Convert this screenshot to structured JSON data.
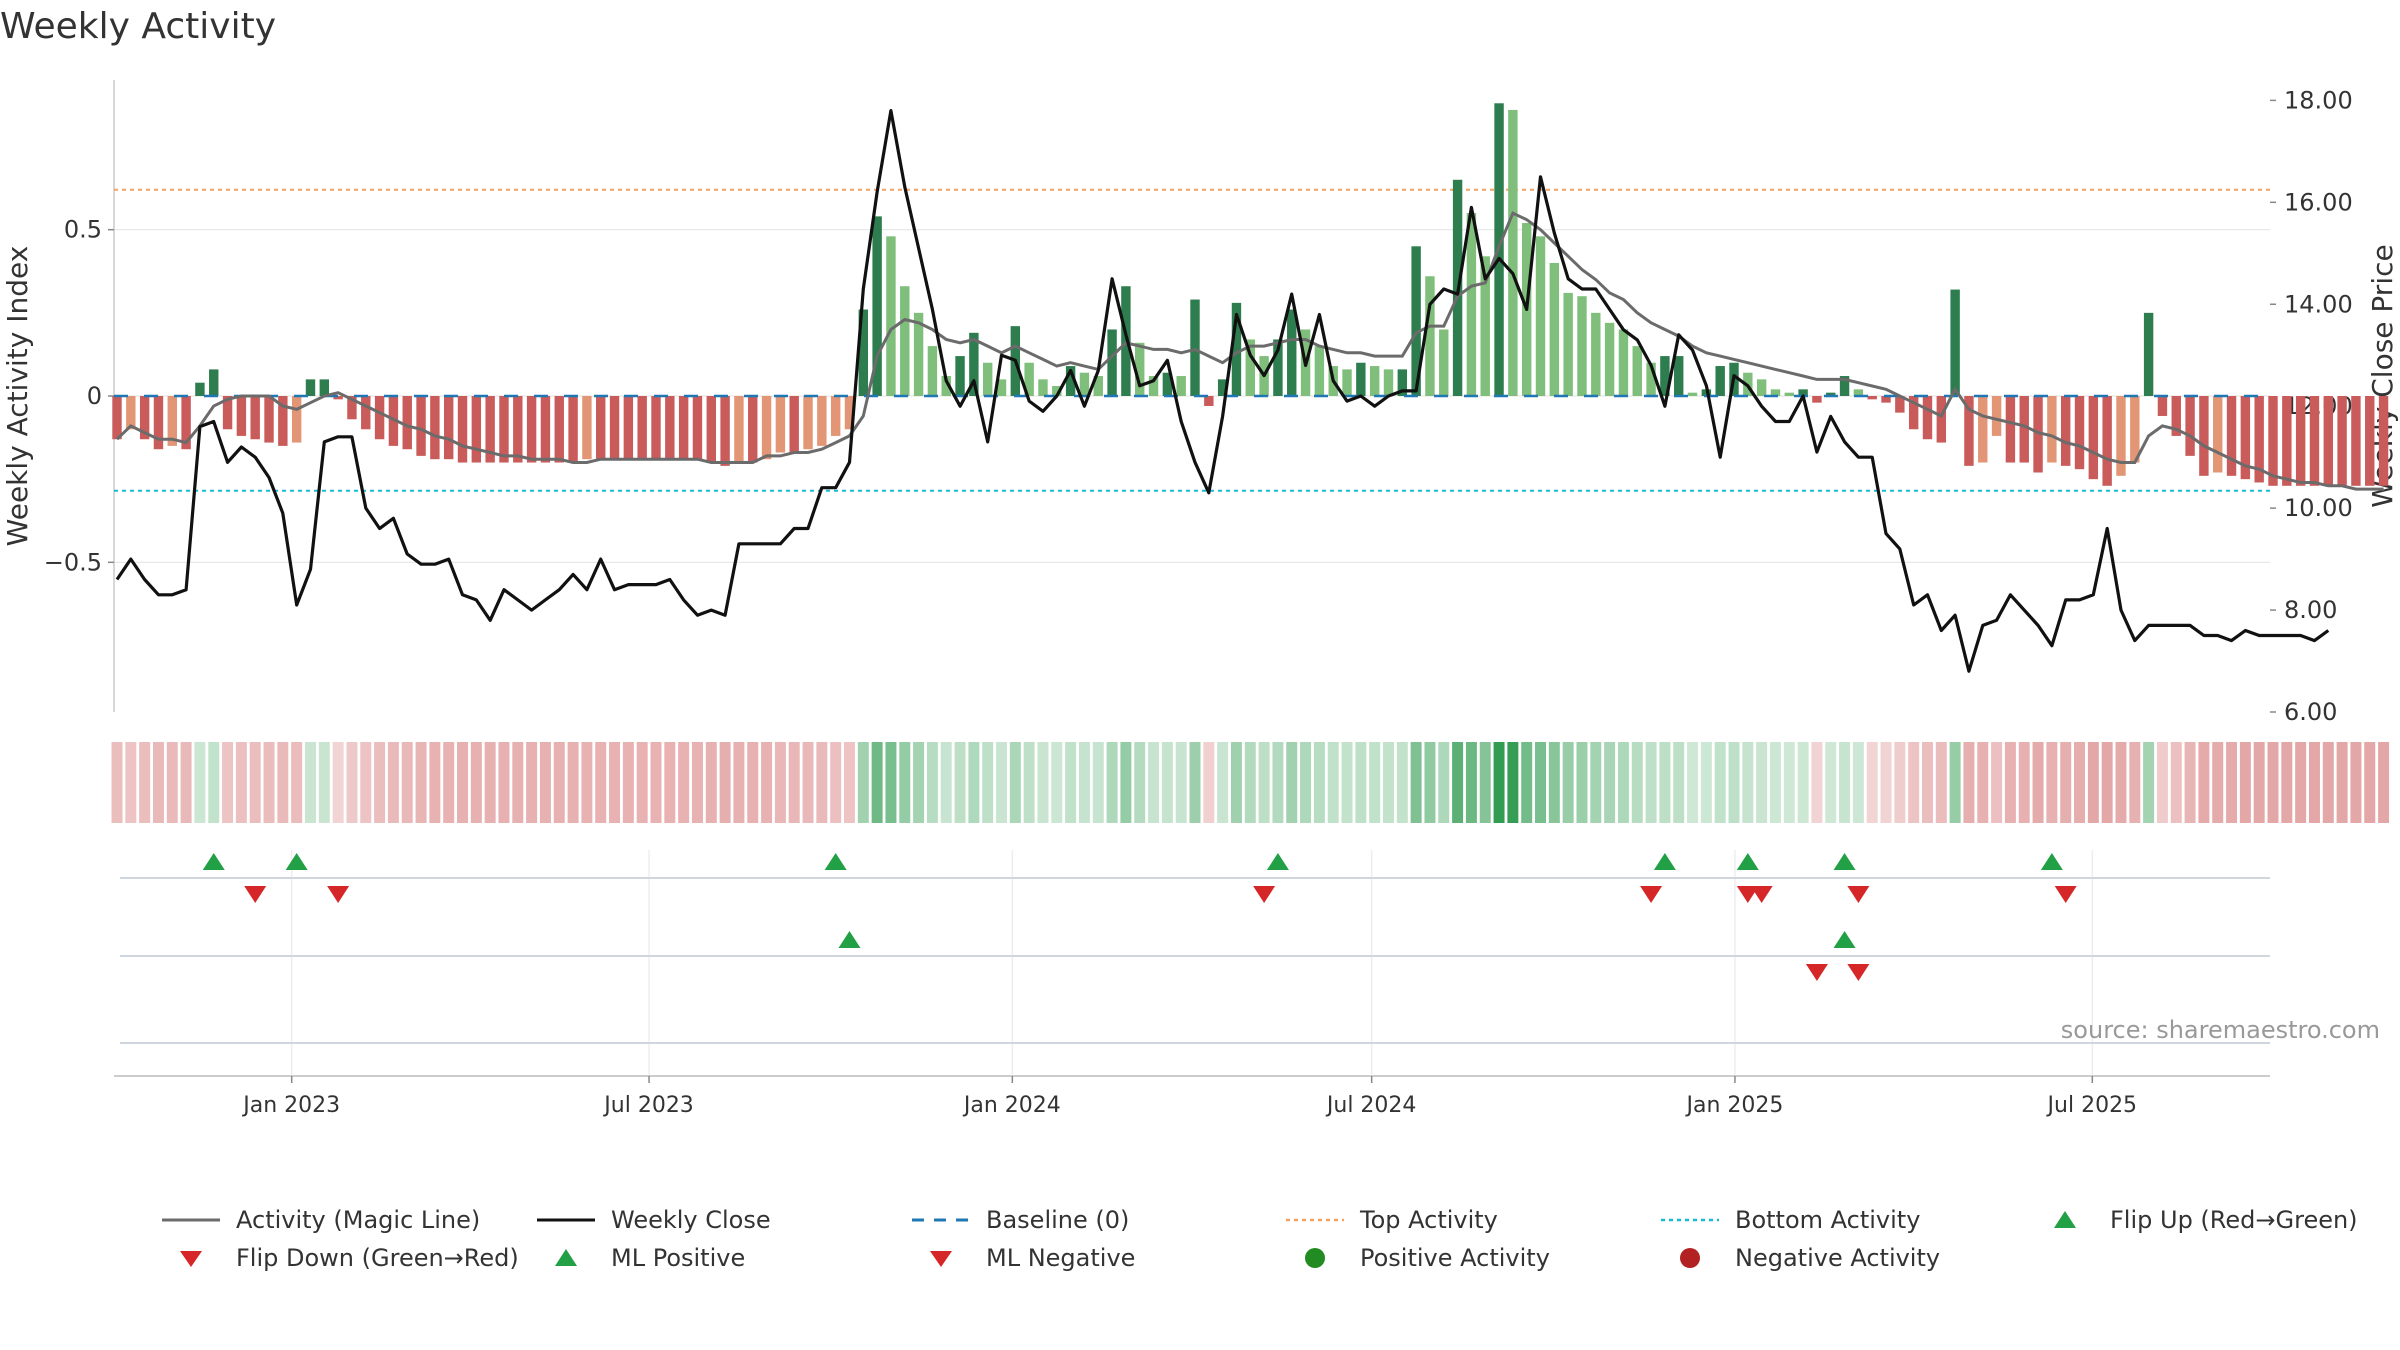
{
  "title": "Weekly Activity",
  "source": "source: sharemaestro.com",
  "colors": {
    "magic_line": "#6b6b6b",
    "close": "#111111",
    "baseline": "#1f77b4",
    "top": "#f4a261",
    "bottom": "#17becf",
    "pos_dark": "#2e7d4f",
    "pos_light": "#7fbf7b",
    "neg_dark": "#c95b5b",
    "neg_light": "#e39676",
    "marker_up": "#22a045",
    "marker_down": "#d62728",
    "positive_dot": "#228b22",
    "negative_dot": "#b22222"
  },
  "legend": [
    {
      "label": "Activity (Magic Line)",
      "icon": "solid-gray-line"
    },
    {
      "label": "Weekly Close",
      "icon": "solid-black-line"
    },
    {
      "label": "Baseline (0)",
      "icon": "dashed-blue-line"
    },
    {
      "label": "Top Activity",
      "icon": "dotted-orange-line"
    },
    {
      "label": "Bottom Activity",
      "icon": "dotted-cyan-line"
    },
    {
      "label": "Flip Up (Red→Green)",
      "icon": "green-up-triangle"
    },
    {
      "label": "Flip Down (Green→Red)",
      "icon": "red-down-triangle"
    },
    {
      "label": "ML Positive",
      "icon": "green-up-triangle"
    },
    {
      "label": "ML Negative",
      "icon": "red-down-triangle"
    },
    {
      "label": "Positive Activity",
      "icon": "green-dot"
    },
    {
      "label": "Negative Activity",
      "icon": "red-dot"
    }
  ],
  "chart_data": {
    "type": "bar",
    "ylabel_left": "Weekly Activity Index",
    "ylabel_right": "Weekly Close Price",
    "y_left_ticks": [
      0.5,
      0,
      -0.5
    ],
    "y_left_tick_labels": [
      "0.5",
      "0",
      "−0.5"
    ],
    "y_left_range": [
      -0.95,
      0.95
    ],
    "y_right_ticks": [
      18,
      16,
      14,
      12,
      10,
      8,
      6
    ],
    "y_right_tick_labels": [
      "18.00",
      "16.00",
      "14.00",
      "12.00",
      "10.00",
      "8.00",
      "6.00"
    ],
    "y_right_range": [
      6,
      18.4
    ],
    "x_range": [
      "2022-10-03",
      "2025-09-29"
    ],
    "x_ticks": [
      {
        "date": "2023-01-01",
        "label": "Jan 2023"
      },
      {
        "date": "2023-07-01",
        "label": "Jul 2023"
      },
      {
        "date": "2024-01-01",
        "label": "Jan 2024"
      },
      {
        "date": "2024-07-01",
        "label": "Jul 2024"
      },
      {
        "date": "2025-01-01",
        "label": "Jan 2025"
      },
      {
        "date": "2025-07-01",
        "label": "Jul 2025"
      }
    ],
    "first_week": "2022-10-03",
    "top_activity": 0.62,
    "bottom_activity": -0.285,
    "baseline": 0,
    "grid": true,
    "activity": [
      -0.13,
      -0.1,
      -0.13,
      -0.16,
      -0.15,
      -0.16,
      0.04,
      0.08,
      -0.1,
      -0.12,
      -0.13,
      -0.14,
      -0.15,
      -0.14,
      0.05,
      0.05,
      -0.01,
      -0.07,
      -0.1,
      -0.13,
      -0.15,
      -0.16,
      -0.18,
      -0.19,
      -0.19,
      -0.2,
      -0.2,
      -0.2,
      -0.2,
      -0.2,
      -0.2,
      -0.2,
      -0.2,
      -0.2,
      -0.19,
      -0.19,
      -0.19,
      -0.19,
      -0.19,
      -0.19,
      -0.19,
      -0.19,
      -0.19,
      -0.2,
      -0.21,
      -0.2,
      -0.2,
      -0.19,
      -0.17,
      -0.17,
      -0.16,
      -0.15,
      -0.12,
      -0.1,
      0.26,
      0.54,
      0.48,
      0.33,
      0.25,
      0.15,
      0.06,
      0.12,
      0.19,
      0.1,
      0.05,
      0.21,
      0.1,
      0.05,
      0.03,
      0.09,
      0.07,
      0.06,
      0.2,
      0.33,
      0.16,
      0.06,
      0.07,
      0.06,
      0.29,
      -0.03,
      0.05,
      0.28,
      0.17,
      0.12,
      0.17,
      0.26,
      0.2,
      0.15,
      0.09,
      0.08,
      0.1,
      0.09,
      0.08,
      0.08,
      0.45,
      0.36,
      0.2,
      0.65,
      0.55,
      0.42,
      0.88,
      0.86,
      0.52,
      0.48,
      0.4,
      0.31,
      0.3,
      0.25,
      0.22,
      0.2,
      0.15,
      0.1,
      0.12,
      0.12,
      0.01,
      0.02,
      0.09,
      0.1,
      0.07,
      0.05,
      0.02,
      0.01,
      0.02,
      -0.02,
      0.01,
      0.06,
      0.02,
      -0.01,
      -0.02,
      -0.05,
      -0.1,
      -0.13,
      -0.14,
      0.32,
      -0.21,
      -0.2,
      -0.12,
      -0.2,
      -0.2,
      -0.23,
      -0.2,
      -0.21,
      -0.22,
      -0.25,
      -0.27,
      -0.24,
      -0.2,
      0.25,
      -0.06,
      -0.12,
      -0.18,
      -0.24,
      -0.23,
      -0.24,
      -0.25,
      -0.26,
      -0.27,
      -0.27,
      -0.27,
      -0.27,
      -0.27,
      -0.27,
      -0.27,
      -0.27,
      -0.27
    ],
    "magic_line": [
      -0.13,
      -0.09,
      -0.11,
      -0.13,
      -0.13,
      -0.14,
      -0.09,
      -0.03,
      -0.01,
      0.0,
      0.0,
      0.0,
      -0.03,
      -0.04,
      -0.02,
      0.0,
      0.01,
      -0.01,
      -0.03,
      -0.05,
      -0.07,
      -0.09,
      -0.1,
      -0.12,
      -0.13,
      -0.15,
      -0.16,
      -0.17,
      -0.18,
      -0.18,
      -0.19,
      -0.19,
      -0.19,
      -0.2,
      -0.2,
      -0.19,
      -0.19,
      -0.19,
      -0.19,
      -0.19,
      -0.19,
      -0.19,
      -0.19,
      -0.2,
      -0.2,
      -0.2,
      -0.2,
      -0.18,
      -0.18,
      -0.17,
      -0.17,
      -0.16,
      -0.14,
      -0.12,
      -0.06,
      0.12,
      0.2,
      0.23,
      0.22,
      0.2,
      0.17,
      0.16,
      0.17,
      0.15,
      0.13,
      0.15,
      0.13,
      0.11,
      0.09,
      0.1,
      0.09,
      0.08,
      0.12,
      0.16,
      0.15,
      0.14,
      0.14,
      0.13,
      0.14,
      0.12,
      0.1,
      0.13,
      0.15,
      0.15,
      0.16,
      0.17,
      0.17,
      0.15,
      0.14,
      0.13,
      0.13,
      0.12,
      0.12,
      0.12,
      0.19,
      0.21,
      0.21,
      0.3,
      0.33,
      0.34,
      0.45,
      0.55,
      0.53,
      0.5,
      0.46,
      0.42,
      0.38,
      0.35,
      0.31,
      0.29,
      0.25,
      0.22,
      0.2,
      0.18,
      0.15,
      0.13,
      0.12,
      0.11,
      0.1,
      0.09,
      0.08,
      0.07,
      0.06,
      0.05,
      0.05,
      0.05,
      0.04,
      0.03,
      0.02,
      0.0,
      -0.02,
      -0.04,
      -0.06,
      0.02,
      -0.04,
      -0.06,
      -0.07,
      -0.08,
      -0.09,
      -0.11,
      -0.12,
      -0.14,
      -0.15,
      -0.17,
      -0.19,
      -0.2,
      -0.2,
      -0.12,
      -0.09,
      -0.1,
      -0.12,
      -0.15,
      -0.17,
      -0.19,
      -0.21,
      -0.22,
      -0.24,
      -0.25,
      -0.26,
      -0.26,
      -0.27,
      -0.27,
      -0.28,
      -0.28,
      -0.28
    ],
    "weekly_close": [
      8.6,
      9.0,
      8.6,
      8.3,
      8.3,
      8.4,
      11.6,
      11.7,
      10.9,
      11.2,
      11.0,
      10.6,
      9.9,
      8.1,
      8.8,
      11.3,
      11.4,
      11.4,
      10.0,
      9.6,
      9.8,
      9.1,
      8.9,
      8.9,
      9.0,
      8.3,
      8.2,
      7.8,
      8.4,
      8.2,
      8.0,
      8.2,
      8.4,
      8.7,
      8.4,
      9.0,
      8.4,
      8.5,
      8.5,
      8.5,
      8.6,
      8.2,
      7.9,
      8.0,
      7.9,
      9.3,
      9.3,
      9.3,
      9.3,
      9.6,
      9.6,
      10.4,
      10.4,
      10.9,
      14.3,
      16.2,
      17.8,
      16.3,
      15.1,
      13.9,
      12.5,
      12.0,
      12.5,
      11.3,
      13.0,
      12.9,
      12.1,
      11.9,
      12.2,
      12.7,
      12.0,
      12.7,
      14.5,
      13.4,
      12.4,
      12.5,
      12.9,
      11.7,
      10.9,
      10.3,
      11.8,
      13.8,
      13.0,
      12.6,
      13.1,
      14.2,
      12.8,
      13.8,
      12.5,
      12.1,
      12.2,
      12.0,
      12.2,
      12.3,
      12.3,
      14.0,
      14.3,
      14.2,
      15.9,
      14.5,
      14.9,
      14.6,
      13.9,
      16.5,
      15.4,
      14.5,
      14.3,
      14.3,
      13.9,
      13.5,
      13.3,
      12.8,
      12.0,
      13.4,
      13.1,
      12.4,
      11.0,
      12.6,
      12.4,
      12.0,
      11.7,
      11.7,
      12.2,
      11.1,
      11.8,
      11.3,
      11.0,
      11.0,
      9.5,
      9.2,
      8.1,
      8.3,
      7.6,
      7.9,
      6.8,
      7.7,
      7.8,
      8.3,
      8.0,
      7.7,
      7.3,
      8.2,
      8.2,
      8.3,
      9.6,
      8.0,
      7.4,
      7.7,
      7.7,
      7.7,
      7.7,
      7.5,
      7.5,
      7.4,
      7.6,
      7.5,
      7.5,
      7.5,
      7.5,
      7.4,
      7.6
    ],
    "flip_up_weeks": [
      "2022-11-21",
      "2023-01-02",
      "2023-10-02",
      "2024-05-13",
      "2024-11-25",
      "2025-01-06",
      "2025-02-24",
      "2025-06-09"
    ],
    "flip_down_weeks": [
      "2022-12-12",
      "2023-01-23",
      "2024-05-06",
      "2024-11-18",
      "2025-01-06",
      "2025-01-13",
      "2025-03-03",
      "2025-06-16"
    ],
    "ml_positive_weeks": [
      "2023-10-09",
      "2025-02-24"
    ],
    "ml_negative_weeks": [
      "2025-02-10",
      "2025-03-03"
    ]
  }
}
